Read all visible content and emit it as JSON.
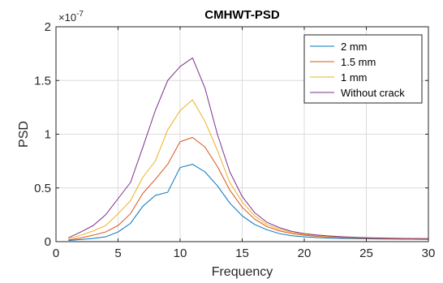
{
  "chart_data": {
    "type": "line",
    "title": "CMHWT-PSD",
    "xlabel": "Frequency",
    "ylabel": "PSD",
    "y_exponent_label": "×10",
    "y_exponent_power": "-7",
    "xlim": [
      0,
      30
    ],
    "ylim": [
      0,
      2
    ],
    "x_ticks": [
      "0",
      "5",
      "10",
      "15",
      "20",
      "25",
      "30"
    ],
    "y_ticks": [
      "0",
      "0.5",
      "1",
      "1.5",
      "2"
    ],
    "grid": true,
    "legend_position": "top-right",
    "x": [
      1,
      2,
      3,
      4,
      5,
      6,
      7,
      8,
      9,
      10,
      11,
      12,
      13,
      14,
      15,
      16,
      17,
      18,
      19,
      20,
      21,
      22,
      23,
      24,
      25,
      26,
      27,
      28,
      29,
      30
    ],
    "series": [
      {
        "name": "2 mm",
        "color": "#0072BD",
        "values": [
          0.01,
          0.02,
          0.03,
          0.045,
          0.09,
          0.17,
          0.33,
          0.43,
          0.46,
          0.69,
          0.72,
          0.65,
          0.52,
          0.36,
          0.24,
          0.16,
          0.11,
          0.075,
          0.055,
          0.045,
          0.038,
          0.033,
          0.03,
          0.028,
          0.026,
          0.025,
          0.024,
          0.023,
          0.022,
          0.021
        ]
      },
      {
        "name": "1.5 mm",
        "color": "#D95319",
        "values": [
          0.015,
          0.035,
          0.06,
          0.09,
          0.15,
          0.26,
          0.45,
          0.58,
          0.72,
          0.93,
          0.97,
          0.88,
          0.7,
          0.48,
          0.32,
          0.21,
          0.14,
          0.1,
          0.075,
          0.06,
          0.05,
          0.043,
          0.038,
          0.034,
          0.031,
          0.029,
          0.027,
          0.026,
          0.025,
          0.024
        ]
      },
      {
        "name": "1 mm",
        "color": "#EDB120",
        "values": [
          0.025,
          0.06,
          0.1,
          0.15,
          0.26,
          0.38,
          0.6,
          0.75,
          1.04,
          1.22,
          1.32,
          1.12,
          0.85,
          0.55,
          0.37,
          0.24,
          0.16,
          0.115,
          0.085,
          0.068,
          0.056,
          0.048,
          0.042,
          0.038,
          0.035,
          0.032,
          0.03,
          0.028,
          0.027,
          0.026
        ]
      },
      {
        "name": "Without crack",
        "color": "#7E2F8E",
        "values": [
          0.035,
          0.09,
          0.15,
          0.25,
          0.4,
          0.55,
          0.88,
          1.22,
          1.5,
          1.63,
          1.71,
          1.43,
          1.0,
          0.65,
          0.42,
          0.27,
          0.18,
          0.13,
          0.095,
          0.075,
          0.062,
          0.053,
          0.046,
          0.041,
          0.037,
          0.034,
          0.032,
          0.03,
          0.029,
          0.028
        ]
      }
    ]
  }
}
